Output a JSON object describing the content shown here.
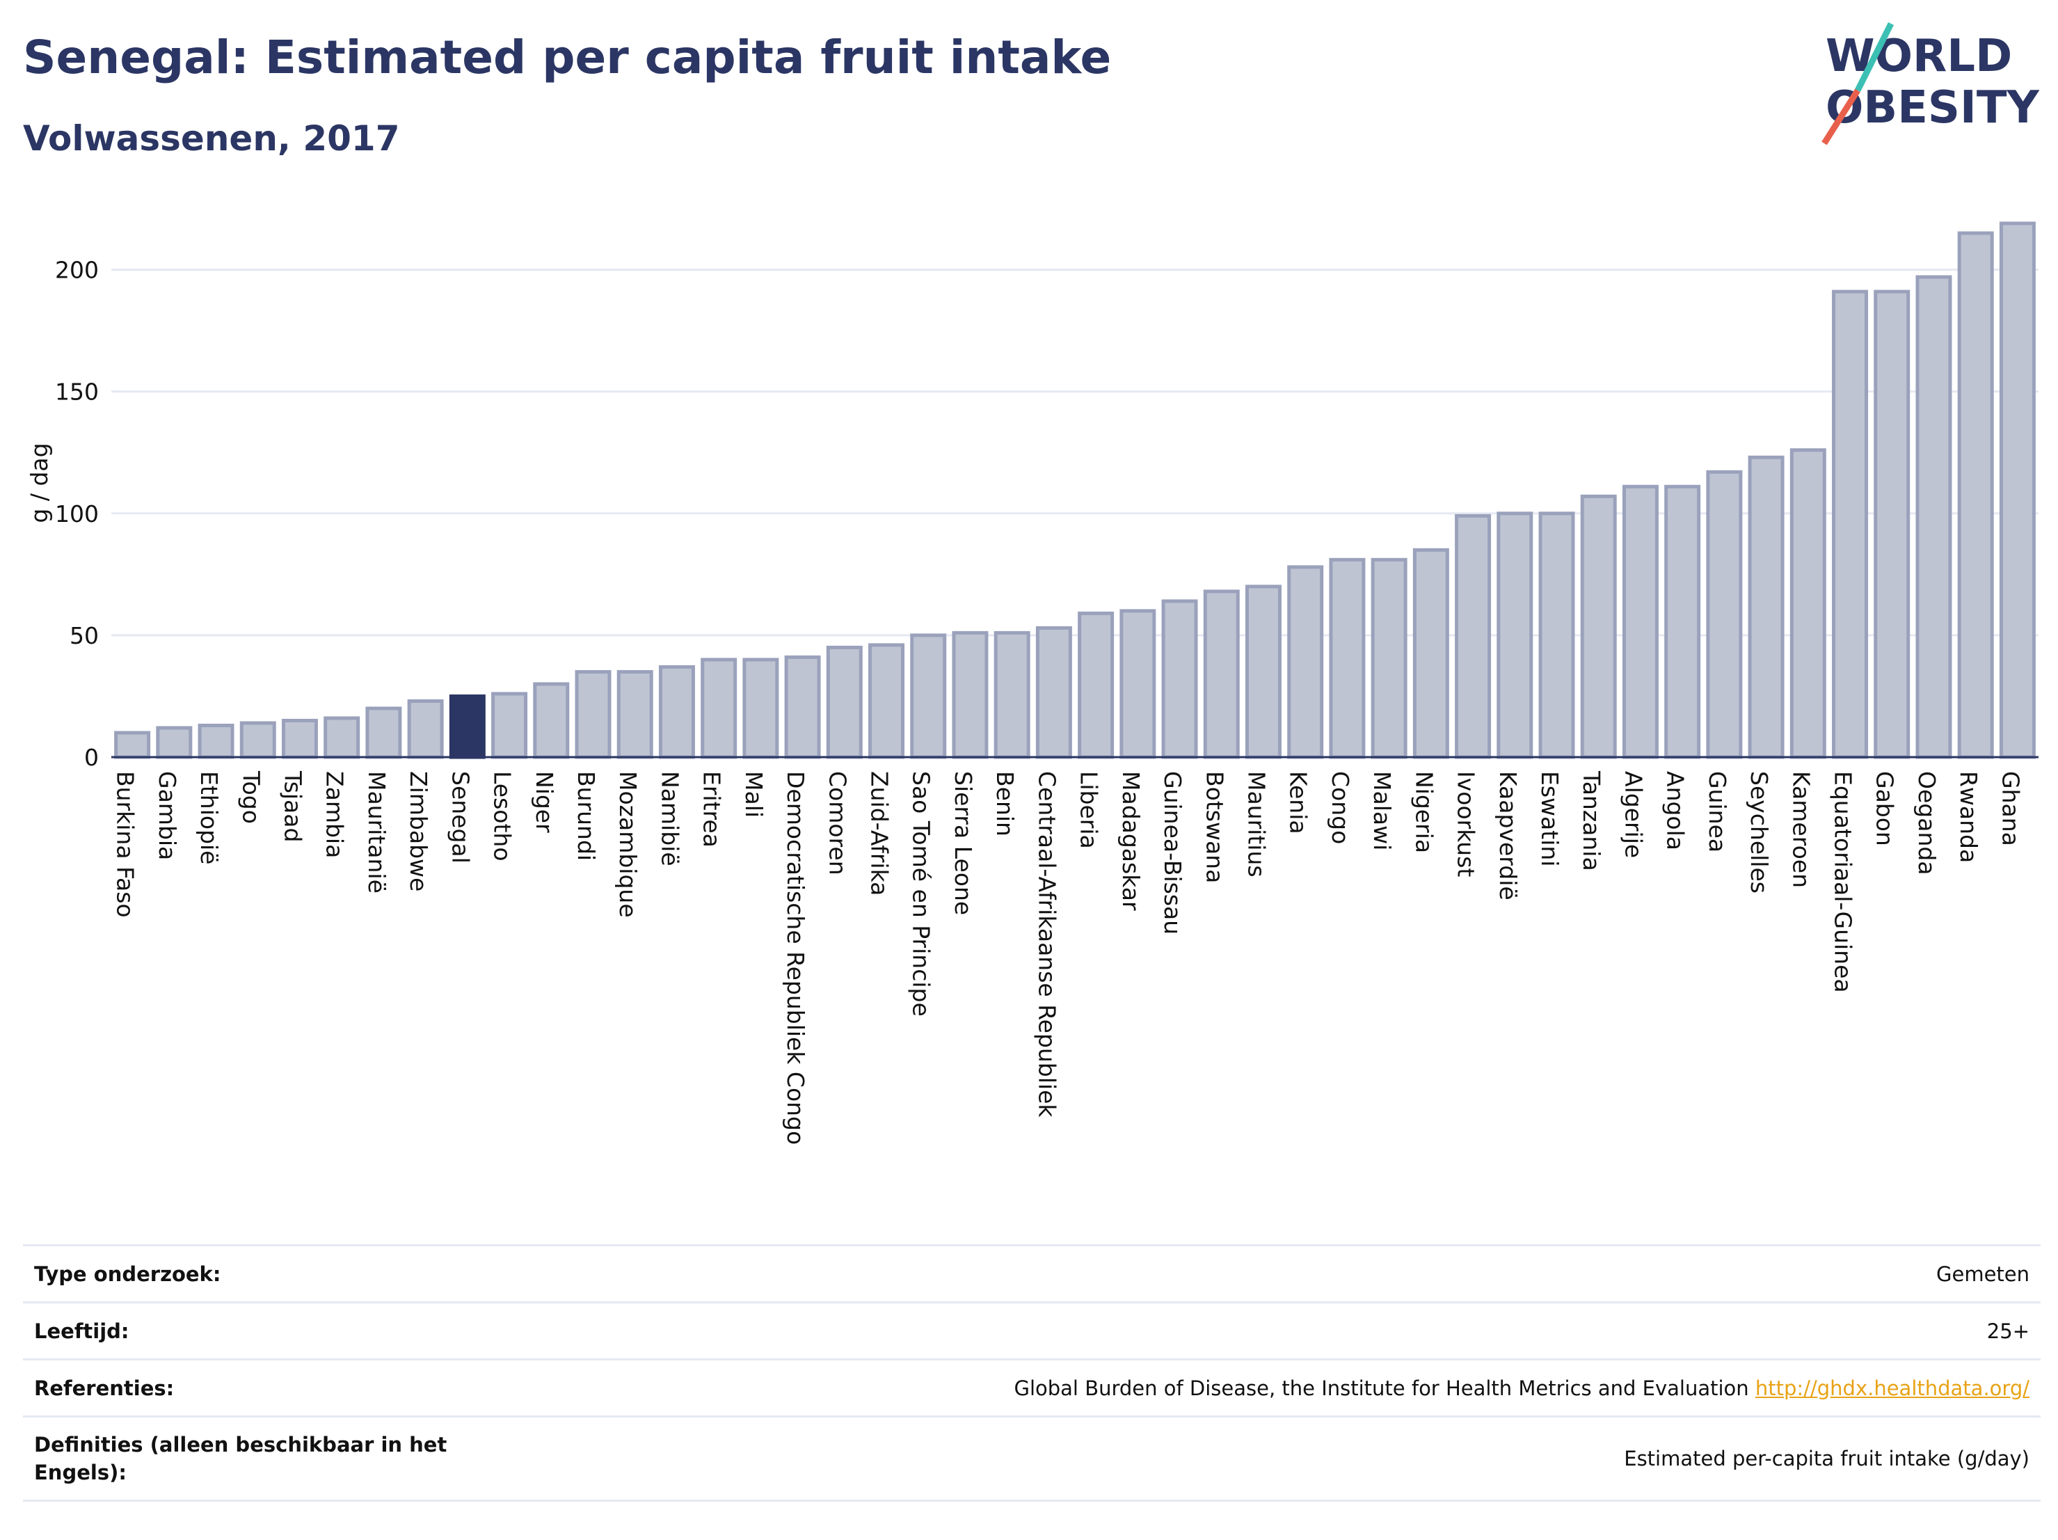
{
  "header": {
    "title": "Senegal: Estimated per capita fruit intake",
    "subtitle": "Volwassenen, 2017"
  },
  "logo": {
    "line1": "WORLD",
    "line2": "OBESITY",
    "accent_teal": "#3cc0b4",
    "accent_red": "#e8604c"
  },
  "colors": {
    "bar": "#bfc4d3",
    "bar_border": "#9aa1bb",
    "highlight": "#2b3664",
    "text": "#2b3664"
  },
  "chart_data": {
    "type": "bar",
    "ylabel": "g / dag",
    "ylim": [
      0,
      225
    ],
    "yticks": [
      0,
      50,
      100,
      150,
      200
    ],
    "grid": true,
    "highlight": "Senegal",
    "categories": [
      "Burkina Faso",
      "Gambia",
      "Ethiopië",
      "Togo",
      "Tsjaad",
      "Zambia",
      "Mauritanië",
      "Zimbabwe",
      "Senegal",
      "Lesotho",
      "Niger",
      "Burundi",
      "Mozambique",
      "Namibië",
      "Eritrea",
      "Mali",
      "Democratische Republiek Congo",
      "Comoren",
      "Zuid-Afrika",
      "Sao Tomé en Principe",
      "Sierra Leone",
      "Benin",
      "Centraal-Afrikaanse Republiek",
      "Liberia",
      "Madagaskar",
      "Guinea-Bissau",
      "Botswana",
      "Mauritius",
      "Kenia",
      "Congo",
      "Malawi",
      "Nigeria",
      "Ivoorkust",
      "Kaapverdië",
      "Eswatini",
      "Tanzania",
      "Algerije",
      "Angola",
      "Guinea",
      "Seychelles",
      "Kameroen",
      "Equatoriaal-Guinea",
      "Gabon",
      "Oeganda",
      "Rwanda",
      "Ghana"
    ],
    "values": [
      10,
      12,
      13,
      14,
      15,
      16,
      20,
      23,
      25,
      26,
      30,
      35,
      35,
      37,
      40,
      40,
      41,
      45,
      46,
      50,
      51,
      51,
      53,
      59,
      60,
      64,
      68,
      70,
      78,
      81,
      81,
      85,
      99,
      100,
      100,
      107,
      111,
      111,
      117,
      123,
      126,
      191,
      191,
      197,
      215,
      219
    ]
  },
  "info": {
    "rows": [
      {
        "label": "Type onderzoek:",
        "value": "Gemeten"
      },
      {
        "label": "Leeftijd:",
        "value": "25+"
      },
      {
        "label": "Referenties:",
        "value": "Global Burden of Disease, the Institute for Health Metrics and Evaluation",
        "link": "http://ghdx.healthdata.org/"
      },
      {
        "label": "Definities (alleen beschikbaar in het Engels):",
        "value": "Estimated per-capita fruit intake (g/day)"
      }
    ]
  }
}
